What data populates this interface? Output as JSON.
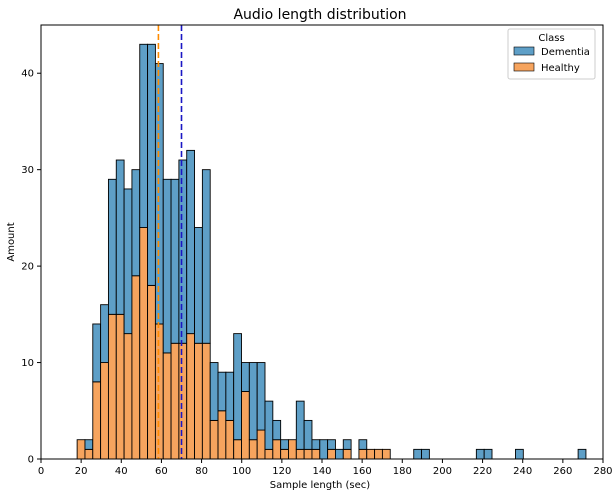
{
  "chart_data": {
    "type": "bar",
    "stacked": true,
    "title": "Audio length distribution",
    "xlabel": "Sample length (sec)",
    "ylabel": "Amount",
    "xlim": [
      0,
      280
    ],
    "ylim": [
      0,
      45
    ],
    "xticks": [
      0,
      20,
      40,
      60,
      80,
      100,
      120,
      140,
      160,
      180,
      200,
      220,
      240,
      260,
      280
    ],
    "yticks": [
      0,
      10,
      20,
      30,
      40
    ],
    "bin_width": 3.9,
    "bin_starts": [
      18.0,
      21.9,
      25.8,
      29.7,
      33.6,
      37.5,
      41.4,
      45.3,
      49.2,
      53.1,
      57.0,
      60.9,
      64.8,
      68.7,
      72.6,
      76.5,
      80.4,
      84.3,
      88.2,
      92.1,
      96.0,
      99.9,
      103.8,
      107.7,
      111.6,
      115.5,
      119.4,
      123.3,
      127.2,
      131.1,
      135.0,
      138.9,
      142.8,
      146.7,
      150.6,
      154.5,
      158.4,
      162.3,
      166.2,
      170.1,
      174.0,
      177.9,
      181.8,
      185.7,
      189.6,
      193.5,
      197.4,
      201.3,
      205.2,
      209.1,
      213.0,
      216.9,
      220.8,
      224.7,
      228.6,
      232.5,
      236.4,
      240.3,
      244.2,
      248.1,
      252.0,
      255.9,
      259.8,
      263.7,
      267.6
    ],
    "series": [
      {
        "name": "Healthy",
        "color": "#F6A45E",
        "values": [
          2,
          1,
          8,
          10,
          15,
          15,
          13,
          19,
          24,
          18,
          14,
          11,
          12,
          12,
          13,
          12,
          12,
          4,
          5,
          4,
          2,
          7,
          2,
          3,
          1,
          2,
          1,
          2,
          1,
          1,
          1,
          0,
          1,
          0,
          1,
          0,
          1,
          1,
          1,
          1,
          0,
          0,
          0,
          0,
          0,
          0,
          0,
          0,
          0,
          0,
          0,
          0,
          0,
          0,
          0,
          0,
          0,
          0,
          0,
          0,
          0,
          0,
          0,
          0,
          0
        ]
      },
      {
        "name": "Dementia",
        "color": "#5E9FC7",
        "values": [
          0,
          1,
          6,
          6,
          14,
          16,
          15,
          11,
          19,
          25,
          27,
          18,
          17,
          19,
          19,
          12,
          18,
          6,
          4,
          5,
          11,
          3,
          8,
          7,
          5,
          2,
          1,
          0,
          5,
          3,
          1,
          2,
          1,
          1,
          1,
          0,
          1,
          0,
          0,
          0,
          0,
          0,
          0,
          1,
          1,
          0,
          0,
          0,
          0,
          0,
          0,
          1,
          1,
          0,
          0,
          0,
          1,
          0,
          0,
          0,
          0,
          0,
          0,
          0,
          1
        ]
      }
    ],
    "vlines": [
      {
        "x": 58.5,
        "color": "#FF8C00",
        "style": "dashed"
      },
      {
        "x": 70,
        "color": "#1A17C4",
        "style": "dashed"
      }
    ],
    "legend": {
      "title": "Class",
      "entries": [
        "Dementia",
        "Healthy"
      ],
      "placement": "top-right"
    }
  }
}
